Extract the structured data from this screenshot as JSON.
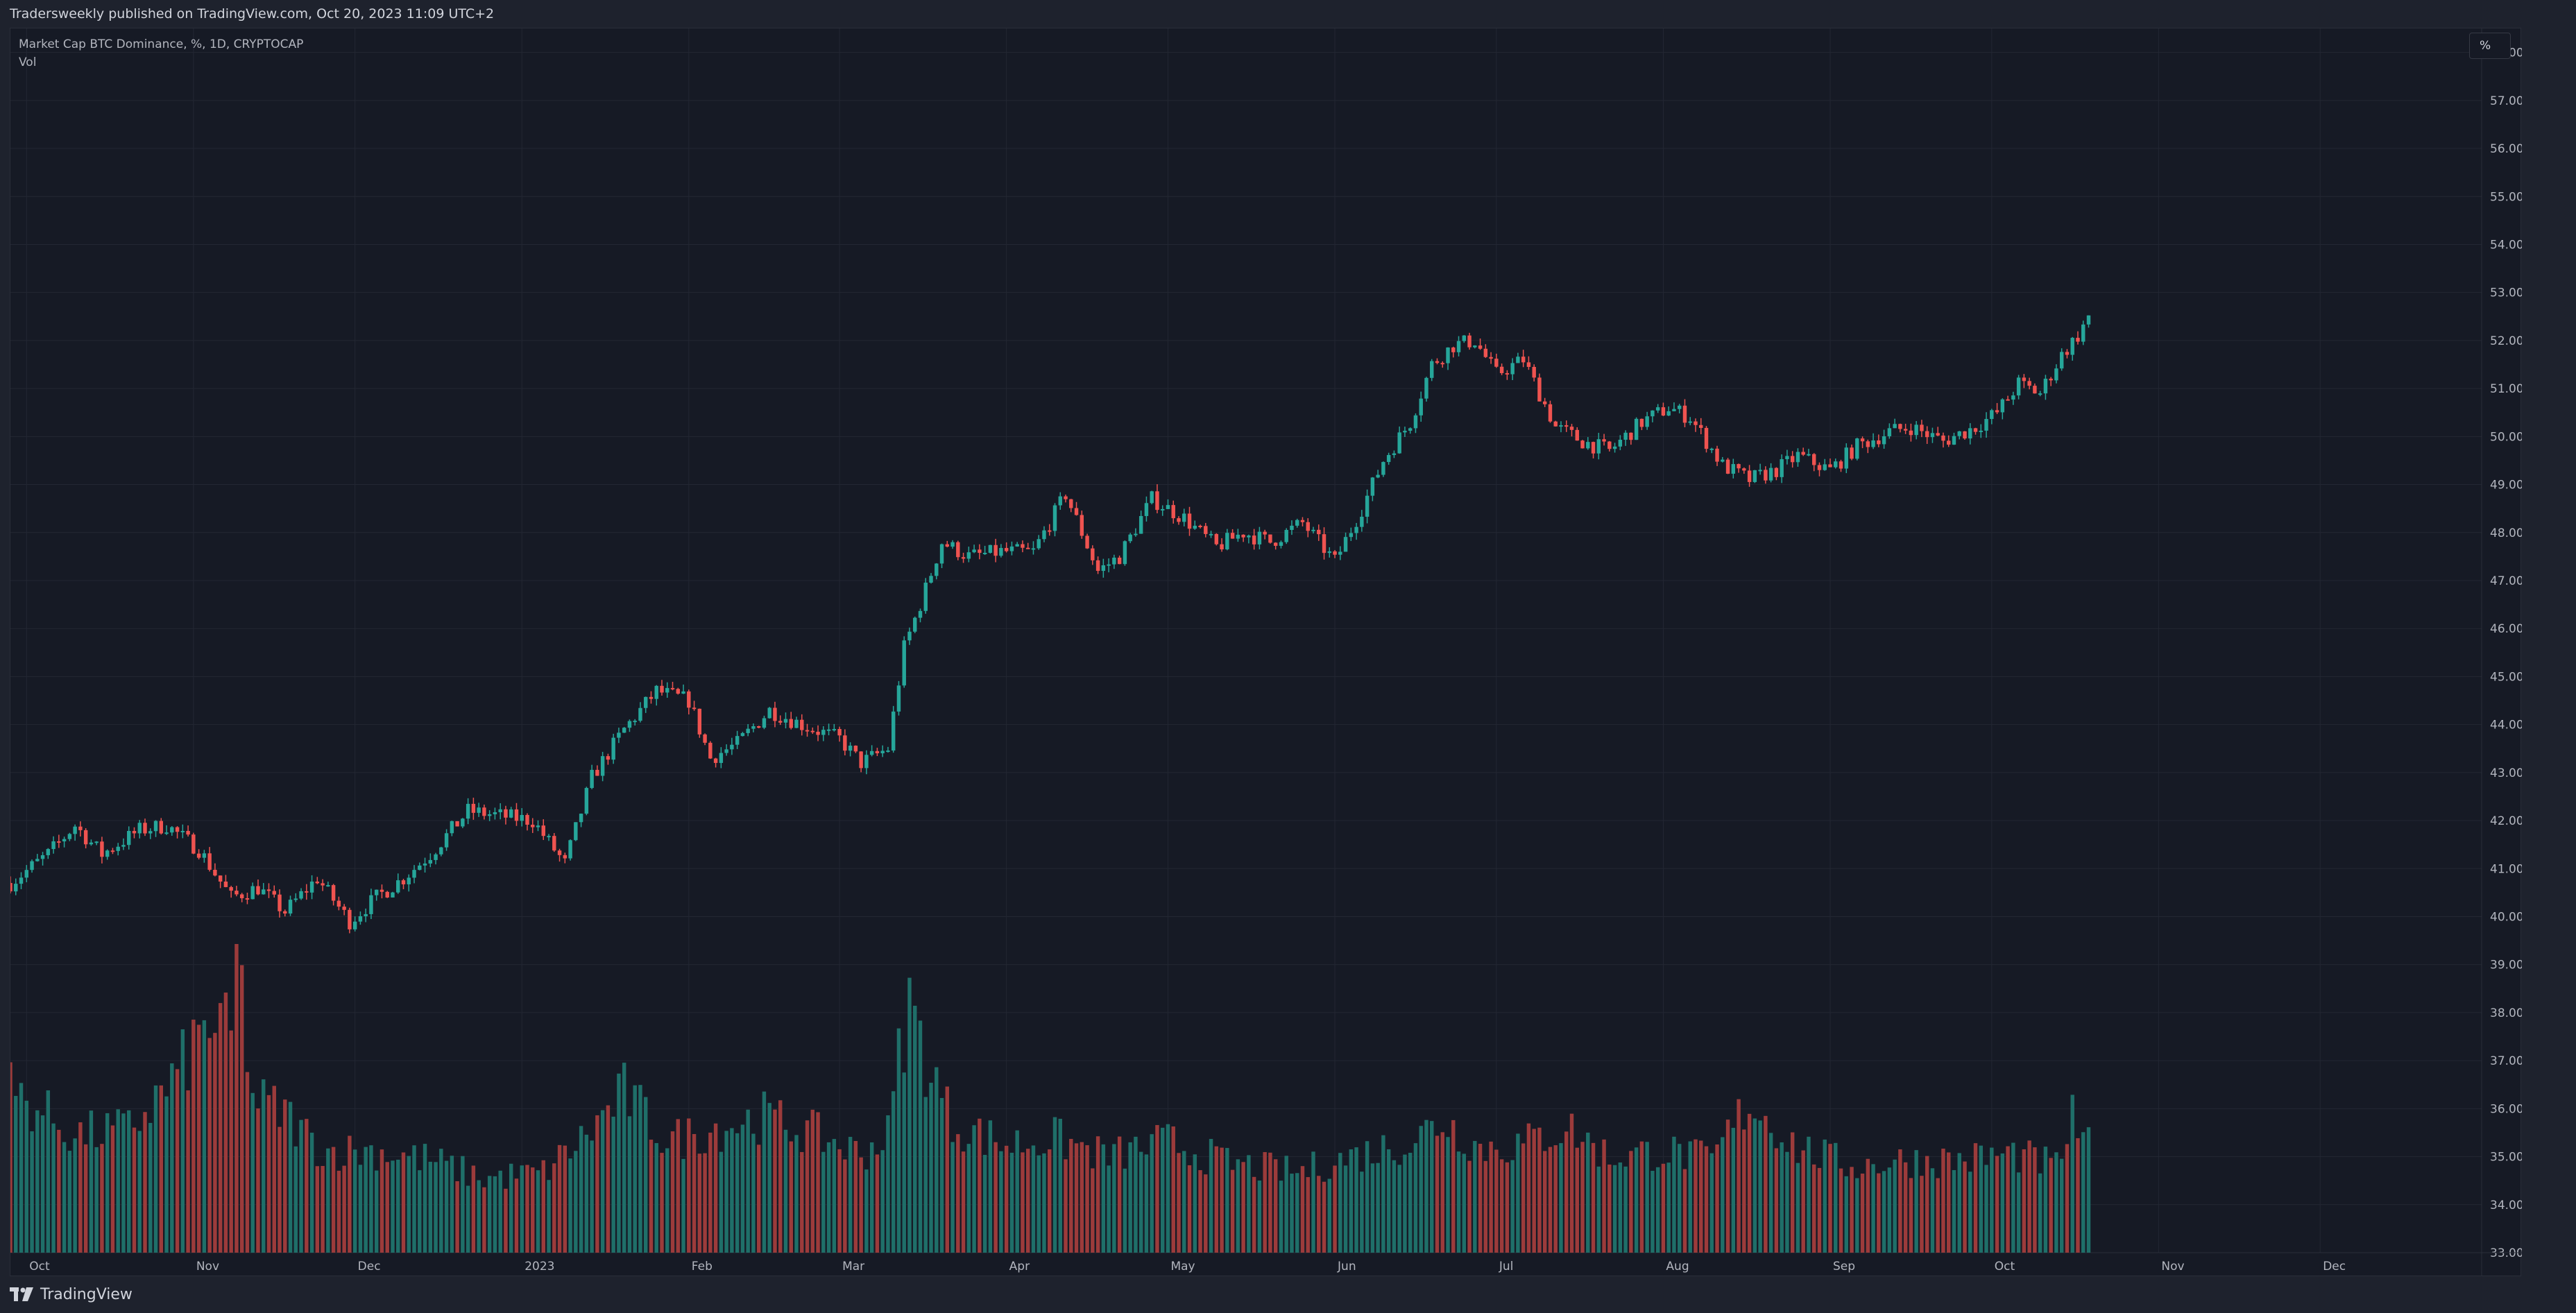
{
  "header": {
    "publish_line": "Tradersweekly published on TradingView.com, Oct 20, 2023 11:09 UTC+2"
  },
  "legend": {
    "symbol_line": "Market Cap BTC Dominance, %, 1D, CRYPTOCAP",
    "volume_line": "Vol"
  },
  "price_scale": {
    "button_label": "%"
  },
  "footer": {
    "brand": "TradingView"
  },
  "colors": {
    "background": "#161a25",
    "up": "#26a69a",
    "down": "#ef5350",
    "up_volume": "#1f6f69",
    "down_volume": "#9c3b3b",
    "grid": "#232733"
  },
  "chart_data": {
    "type": "candlestick",
    "title": "Market Cap BTC Dominance, %, 1D, CRYPTOCAP",
    "ylim": [
      33,
      58.5
    ],
    "y_ticks": [
      "33.00%",
      "34.00%",
      "35.00%",
      "36.00%",
      "37.00%",
      "38.00%",
      "39.00%",
      "40.00%",
      "41.00%",
      "42.00%",
      "43.00%",
      "44.00%",
      "45.00%",
      "46.00%",
      "47.00%",
      "48.00%",
      "49.00%",
      "50.00%",
      "51.00%",
      "52.00%",
      "53.00%",
      "54.00%",
      "55.00%",
      "56.00%",
      "57.00%",
      "58.00%"
    ],
    "x_ticks": [
      "Oct",
      "Nov",
      "Dec",
      "2023",
      "Feb",
      "Mar",
      "Apr",
      "May",
      "Jun",
      "Jul",
      "Aug",
      "Sep",
      "Oct",
      "Nov",
      "Dec"
    ],
    "x_range": [
      "2022-09-28",
      "2023-12-31"
    ],
    "grid": true,
    "close_series": {
      "dates": [
        "2022-09-28",
        "2022-10-05",
        "2022-10-10",
        "2022-10-15",
        "2022-10-22",
        "2022-10-27",
        "2022-11-02",
        "2022-11-08",
        "2022-11-13",
        "2022-11-18",
        "2022-11-24",
        "2022-11-30",
        "2022-12-05",
        "2022-12-10",
        "2022-12-15",
        "2022-12-22",
        "2022-12-28",
        "2023-01-03",
        "2023-01-09",
        "2023-01-14",
        "2023-01-20",
        "2023-01-26",
        "2023-02-01",
        "2023-02-05",
        "2023-02-10",
        "2023-02-16",
        "2023-02-22",
        "2023-03-01",
        "2023-03-05",
        "2023-03-10",
        "2023-03-13",
        "2023-03-16",
        "2023-03-20",
        "2023-03-25",
        "2023-03-31",
        "2023-04-06",
        "2023-04-12",
        "2023-04-18",
        "2023-04-22",
        "2023-04-28",
        "2023-05-04",
        "2023-05-10",
        "2023-05-15",
        "2023-05-20",
        "2023-05-26",
        "2023-06-01",
        "2023-06-06",
        "2023-06-10",
        "2023-06-15",
        "2023-06-19",
        "2023-06-23",
        "2023-06-27",
        "2023-07-01",
        "2023-07-06",
        "2023-07-12",
        "2023-07-17",
        "2023-07-22",
        "2023-07-28",
        "2023-08-02",
        "2023-08-06",
        "2023-08-12",
        "2023-08-17",
        "2023-08-22",
        "2023-08-26",
        "2023-09-01",
        "2023-09-06",
        "2023-09-12",
        "2023-09-16",
        "2023-09-22",
        "2023-09-28",
        "2023-10-02",
        "2023-10-06",
        "2023-10-10",
        "2023-10-14",
        "2023-10-17",
        "2023-10-19"
      ],
      "values": [
        40.7,
        41.3,
        41.9,
        41.3,
        41.8,
        41.9,
        41.4,
        40.4,
        40.6,
        40.1,
        40.8,
        39.9,
        40.4,
        40.8,
        41.3,
        42.2,
        42.1,
        42.0,
        41.1,
        42.9,
        43.9,
        44.7,
        44.5,
        43.3,
        43.6,
        44.3,
        44.0,
        43.7,
        43.2,
        43.5,
        45.6,
        46.5,
        47.8,
        47.5,
        47.6,
        47.6,
        48.8,
        47.2,
        47.5,
        48.7,
        48.3,
        47.7,
        48.0,
        47.8,
        48.2,
        47.4,
        48.5,
        49.5,
        50.3,
        51.5,
        51.9,
        52.0,
        51.3,
        51.6,
        50.2,
        49.9,
        49.7,
        50.3,
        50.6,
        50.4,
        49.4,
        49.1,
        49.3,
        49.6,
        49.3,
        49.8,
        50.1,
        50.2,
        49.9,
        50.2,
        50.5,
        51.1,
        50.9,
        51.7,
        52.1,
        52.5
      ]
    },
    "volume_series": {
      "dates": [
        "2022-09-28",
        "2022-10-10",
        "2022-10-20",
        "2022-10-28",
        "2022-11-04",
        "2022-11-08",
        "2022-11-09",
        "2022-11-12",
        "2022-11-18",
        "2022-11-25",
        "2022-12-05",
        "2022-12-15",
        "2022-12-25",
        "2023-01-05",
        "2023-01-13",
        "2023-01-20",
        "2023-01-28",
        "2023-02-05",
        "2023-02-15",
        "2023-02-25",
        "2023-03-05",
        "2023-03-10",
        "2023-03-12",
        "2023-03-14",
        "2023-03-17",
        "2023-03-22",
        "2023-04-01",
        "2023-04-10",
        "2023-04-20",
        "2023-05-01",
        "2023-05-12",
        "2023-05-25",
        "2023-06-06",
        "2023-06-15",
        "2023-06-21",
        "2023-06-28",
        "2023-07-06",
        "2023-07-14",
        "2023-07-22",
        "2023-08-01",
        "2023-08-10",
        "2023-08-17",
        "2023-08-26",
        "2023-09-05",
        "2023-09-15",
        "2023-09-25",
        "2023-10-05",
        "2023-10-13",
        "2023-10-16",
        "2023-10-19"
      ],
      "values": [
        0.53,
        0.38,
        0.4,
        0.55,
        0.75,
        0.69,
        1.0,
        0.5,
        0.45,
        0.33,
        0.33,
        0.3,
        0.24,
        0.26,
        0.38,
        0.52,
        0.36,
        0.4,
        0.44,
        0.38,
        0.32,
        0.38,
        0.63,
        0.81,
        0.63,
        0.42,
        0.35,
        0.37,
        0.31,
        0.36,
        0.29,
        0.26,
        0.32,
        0.36,
        0.43,
        0.34,
        0.35,
        0.41,
        0.31,
        0.33,
        0.3,
        0.49,
        0.34,
        0.28,
        0.3,
        0.3,
        0.32,
        0.28,
        0.43,
        0.34
      ]
    }
  }
}
